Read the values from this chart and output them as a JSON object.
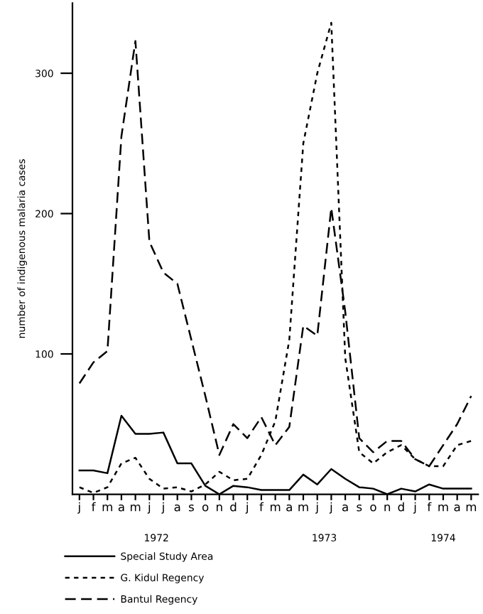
{
  "chart_data": {
    "type": "line",
    "ylabel": "number of indigenous malaria cases",
    "categories": [
      "j",
      "f",
      "m",
      "a",
      "m",
      "j",
      "j",
      "a",
      "s",
      "o",
      "n",
      "d",
      "j",
      "f",
      "m",
      "a",
      "m",
      "j",
      "j",
      "a",
      "s",
      "o",
      "n",
      "d",
      "j",
      "f",
      "m",
      "a",
      "m"
    ],
    "ylim": [
      0,
      350
    ],
    "yticks": [
      100,
      200,
      300
    ],
    "annotations": [
      "1972",
      "1973",
      "1974"
    ],
    "series": [
      {
        "name": "Special Study Area",
        "color": "#000000",
        "line_style": "solid",
        "values": [
          17,
          17,
          15,
          56,
          43,
          43,
          44,
          22,
          22,
          6,
          0,
          6,
          5,
          3,
          3,
          3,
          14,
          7,
          18,
          11,
          5,
          4,
          0,
          4,
          2,
          7,
          4,
          4,
          4
        ]
      },
      {
        "name": "G. Kidul Regency",
        "color": "#000000",
        "line_style": "dotted",
        "values": [
          5,
          1,
          5,
          22,
          26,
          11,
          4,
          5,
          2,
          7,
          16,
          10,
          11,
          28,
          52,
          110,
          250,
          300,
          336,
          97,
          30,
          22,
          30,
          35,
          25,
          20,
          20,
          35,
          38
        ]
      },
      {
        "name": "Bantul Regency",
        "color": "#000000",
        "line_style": "dashed",
        "values": [
          79,
          94,
          102,
          255,
          323,
          180,
          158,
          150,
          110,
          70,
          28,
          50,
          40,
          55,
          35,
          48,
          120,
          113,
          204,
          130,
          40,
          30,
          38,
          38,
          25,
          20,
          35,
          50,
          70
        ]
      }
    ],
    "legend": "bottom left",
    "grid": false
  }
}
